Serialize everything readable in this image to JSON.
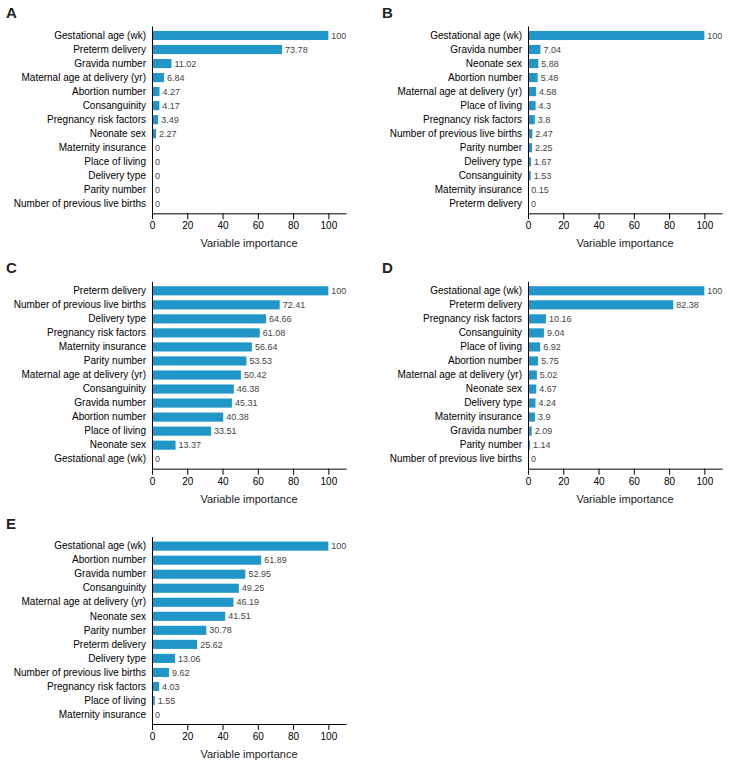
{
  "chart_data": [
    {
      "type": "bar",
      "orientation": "horizontal",
      "title": "A",
      "xlabel": "Variable importance",
      "categories": [
        "Gestational age (wk)",
        "Preterm delivery",
        "Gravida number",
        "Maternal age at delivery (yr)",
        "Abortion number",
        "Consanguinity",
        "Pregnancy risk factors",
        "Neonate sex",
        "Maternity insurance",
        "Place of living",
        "Delivery type",
        "Parity number",
        "Number of previous live births"
      ],
      "values": [
        100,
        73.78,
        11.02,
        6.84,
        4.27,
        4.17,
        3.49,
        2.27,
        0,
        0,
        0,
        0,
        0
      ],
      "color": "#2196C9",
      "xlim": [
        0,
        110
      ],
      "xticks": [
        0,
        20,
        40,
        60,
        80,
        100
      ],
      "data_labels": true
    },
    {
      "type": "bar",
      "orientation": "horizontal",
      "title": "B",
      "xlabel": "Variable importance",
      "categories": [
        "Gestational age (wk)",
        "Gravida number",
        "Neonate sex",
        "Abortion number",
        "Maternal age at delivery (yr)",
        "Place of living",
        "Pregnancy risk factors",
        "Number of previous live births",
        "Parity number",
        "Delivery type",
        "Consanguinity",
        "Maternity insurance",
        "Preterm delivery"
      ],
      "values": [
        100,
        7.04,
        5.88,
        5.48,
        4.58,
        4.3,
        3.8,
        2.47,
        2.25,
        1.67,
        1.53,
        0.15,
        0
      ],
      "color": "#2196C9",
      "xlim": [
        0,
        110
      ],
      "xticks": [
        0,
        20,
        40,
        60,
        80,
        100
      ],
      "data_labels": true
    },
    {
      "type": "bar",
      "orientation": "horizontal",
      "title": "C",
      "xlabel": "Variable importance",
      "categories": [
        "Preterm delivery",
        "Number of previous live births",
        "Delivery type",
        "Pregnancy risk factors",
        "Maternity insurance",
        "Parity number",
        "Maternal age at delivery (yr)",
        "Consanguinity",
        "Gravida number",
        "Abortion number",
        "Place of living",
        "Neonate sex",
        "Gestational age (wk)"
      ],
      "values": [
        100,
        72.41,
        64.66,
        61.08,
        56.64,
        53.53,
        50.42,
        46.38,
        45.31,
        40.38,
        33.51,
        13.37,
        0
      ],
      "color": "#2196C9",
      "xlim": [
        0,
        110
      ],
      "xticks": [
        0,
        20,
        40,
        60,
        80,
        100
      ],
      "data_labels": true
    },
    {
      "type": "bar",
      "orientation": "horizontal",
      "title": "D",
      "xlabel": "Variable importance",
      "categories": [
        "Gestational age (wk)",
        "Preterm delivery",
        "Pregnancy risk factors",
        "Consanguinity",
        "Place of living",
        "Abortion number",
        "Maternal age at delivery (yr)",
        "Neonate sex",
        "Delivery type",
        "Maternity insurance",
        "Gravida number",
        "Parity number",
        "Number of previous live births"
      ],
      "values": [
        100,
        82.38,
        10.16,
        9.04,
        6.92,
        5.75,
        5.02,
        4.67,
        4.24,
        3.9,
        2.09,
        1.14,
        0
      ],
      "color": "#2196C9",
      "xlim": [
        0,
        110
      ],
      "xticks": [
        0,
        20,
        40,
        60,
        80,
        100
      ],
      "data_labels": true
    },
    {
      "type": "bar",
      "orientation": "horizontal",
      "title": "E",
      "xlabel": "Variable importance",
      "categories": [
        "Gestational age (wk)",
        "Abortion number",
        "Gravida number",
        "Consanguinity",
        "Maternal age at delivery (yr)",
        "Neonate sex",
        "Parity number",
        "Preterm delivery",
        "Delivery type",
        "Number of previous live births",
        "Pregnancy risk factors",
        "Place of living",
        "Maternity insurance"
      ],
      "values": [
        100,
        61.89,
        52.95,
        49.25,
        46.19,
        41.51,
        30.78,
        25.62,
        13.06,
        9.62,
        4.03,
        1.55,
        0
      ],
      "color": "#2196C9",
      "xlim": [
        0,
        110
      ],
      "xticks": [
        0,
        20,
        40,
        60,
        80,
        100
      ],
      "data_labels": true
    }
  ]
}
